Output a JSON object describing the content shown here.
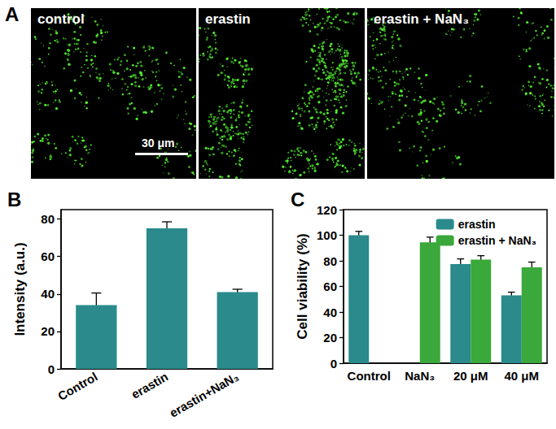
{
  "image_panel": {
    "label": "A",
    "images": [
      {
        "label": "control"
      },
      {
        "label": "erastin"
      },
      {
        "label": "erastin + NaN₃"
      }
    ],
    "scale_bar": {
      "label": "30 μm"
    }
  },
  "chart_data": [
    {
      "type": "bar",
      "title": "B",
      "categories": [
        "Control",
        "erastin",
        "erastin+NaN₃"
      ],
      "values": [
        34,
        75,
        41
      ],
      "errors": [
        6.5,
        3.5,
        1.5
      ],
      "color": "#2a8a8c",
      "ylabel": "Intensity (a.u.)",
      "ylim": [
        0,
        85
      ],
      "yticks": [
        0,
        20,
        40,
        60,
        80
      ],
      "grid": false
    },
    {
      "type": "bar",
      "title": "C",
      "categories": [
        "Control",
        "NaN₃",
        "20 μM",
        "40 μM"
      ],
      "series": [
        {
          "name": "erastin",
          "color": "#2a8a8c",
          "values": [
            100,
            null,
            77.5,
            53
          ],
          "errors": [
            3,
            null,
            4,
            2.5
          ]
        },
        {
          "name": "erastin + NaN₃",
          "color": "#3aa83a",
          "values": [
            null,
            94.5,
            81,
            75
          ],
          "errors": [
            null,
            4,
            3,
            4
          ]
        }
      ],
      "ylabel": "Cell viability (%)",
      "ylim": [
        0,
        120
      ],
      "yticks": [
        0,
        20,
        40,
        60,
        80,
        100,
        120
      ],
      "grid": false,
      "legend": "upper right"
    }
  ]
}
